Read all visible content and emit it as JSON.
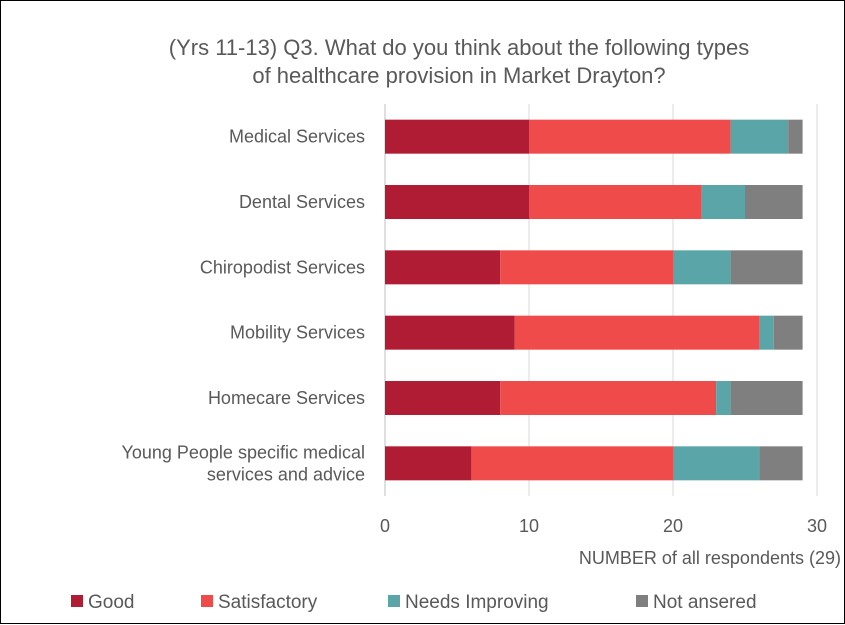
{
  "chart_data": {
    "type": "bar",
    "orientation": "horizontal",
    "stacked": true,
    "title_lines": [
      "(Yrs 11-13) Q3. What do you think about the following types",
      "of healthcare provision in Market Drayton?"
    ],
    "categories": [
      "Medical Services",
      "Dental Services",
      "Chiropodist Services",
      "Mobility Services",
      "Homecare Services",
      "Young People specific medical services and advice"
    ],
    "category_lines": [
      [
        "Medical Services"
      ],
      [
        "Dental Services"
      ],
      [
        "Chiropodist Services"
      ],
      [
        "Mobility Services"
      ],
      [
        "Homecare Services"
      ],
      [
        "Young People specific medical",
        "services and advice"
      ]
    ],
    "series": [
      {
        "name": "Good",
        "color": "#B01C33",
        "values": [
          10,
          10,
          8,
          9,
          8,
          6
        ]
      },
      {
        "name": "Satisfactory",
        "color": "#EF4B4B",
        "values": [
          14,
          12,
          12,
          17,
          15,
          14
        ]
      },
      {
        "name": "Needs Improving",
        "color": "#5AA5A8",
        "values": [
          4,
          3,
          4,
          1,
          1,
          6
        ]
      },
      {
        "name": "Not ansered",
        "color": "#7F7F7F",
        "values": [
          1,
          4,
          5,
          2,
          5,
          3
        ]
      }
    ],
    "xlabel": "NUMBER of all respondents (29)",
    "xlim": [
      0,
      30
    ],
    "xticks": [
      "0",
      "10",
      "20",
      "30"
    ],
    "grid": true,
    "legend_position": "bottom"
  }
}
